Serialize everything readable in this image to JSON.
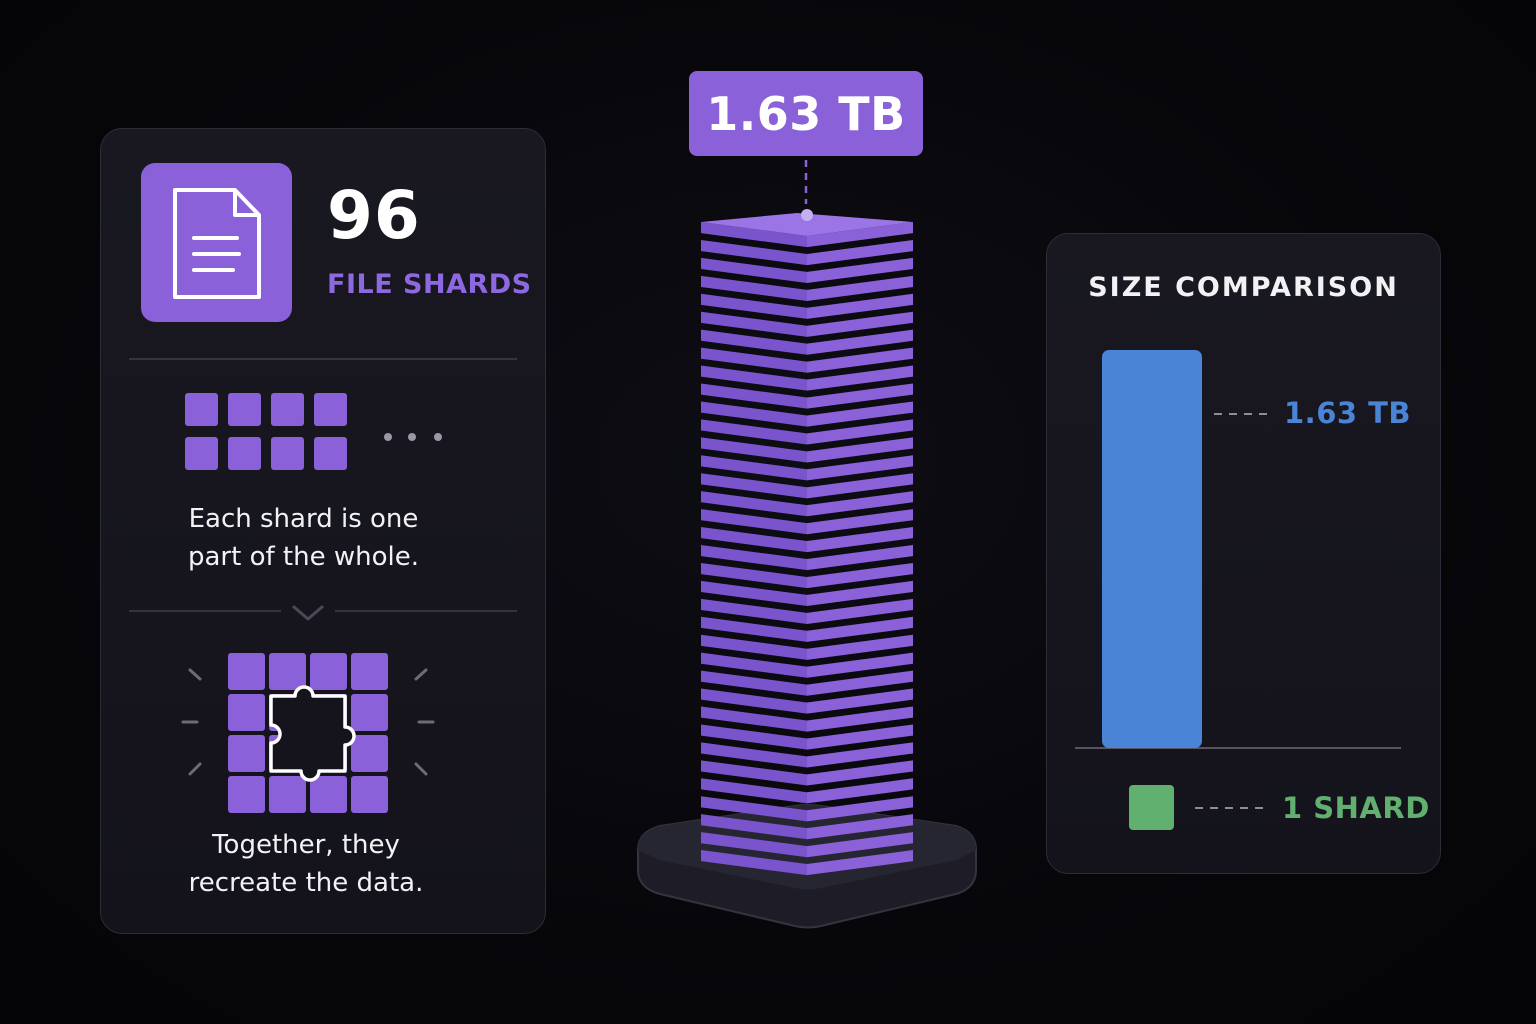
{
  "callout": {
    "value": "1.63 TB"
  },
  "shards": {
    "count": "96",
    "label": "FILE SHARDS",
    "caption_part_lines": [
      "Each shard is one",
      "part of the whole."
    ],
    "caption_together_lines": [
      "Together, they",
      "recreate the data."
    ]
  },
  "comparison": {
    "title": "SIZE COMPARISON",
    "total_label": "1.63 TB",
    "shard_label": "1 SHARD"
  },
  "colors": {
    "purple": "#8a61d9",
    "blue": "#4a84d6",
    "green": "#62b06f"
  },
  "icons": [
    "document-icon",
    "puzzle-piece-icon",
    "chevron-down-icon",
    "ellipsis-icon"
  ],
  "chart_data": {
    "type": "bar",
    "title": "SIZE COMPARISON",
    "categories": [
      "1.63 TB",
      "1 SHARD"
    ],
    "values": [
      96,
      1
    ],
    "units": "shards"
  }
}
